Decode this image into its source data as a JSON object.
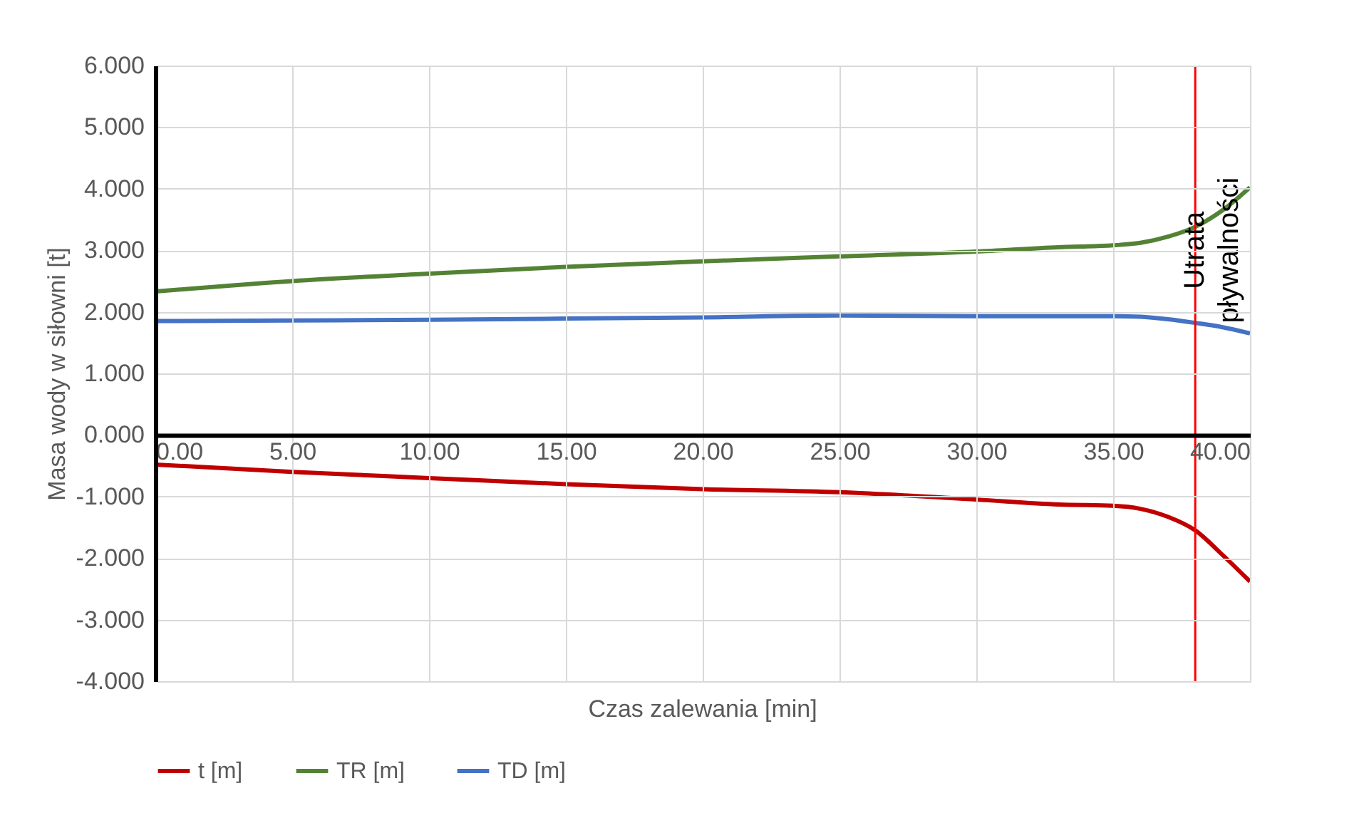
{
  "chart_data": {
    "type": "line",
    "xlabel": "Czas zalewania [min]",
    "ylabel": "Masa wody w siłowni [t]",
    "x": [
      0,
      5,
      10,
      15,
      20,
      25,
      30,
      33,
      35,
      36,
      37,
      38,
      39,
      40
    ],
    "series": [
      {
        "name": "t [m]",
        "color": "#c00000",
        "values": [
          -0.48,
          -0.6,
          -0.7,
          -0.8,
          -0.88,
          -0.93,
          -1.05,
          -1.13,
          -1.15,
          -1.2,
          -1.33,
          -1.55,
          -1.95,
          -2.38
        ]
      },
      {
        "name": "TR [m]",
        "color": "#548235",
        "values": [
          2.33,
          2.5,
          2.62,
          2.73,
          2.82,
          2.9,
          2.98,
          3.05,
          3.08,
          3.12,
          3.22,
          3.38,
          3.65,
          4.02
        ]
      },
      {
        "name": "TD [m]",
        "color": "#4472c4",
        "values": [
          1.85,
          1.86,
          1.87,
          1.89,
          1.91,
          1.94,
          1.93,
          1.93,
          1.93,
          1.92,
          1.88,
          1.82,
          1.75,
          1.65
        ]
      }
    ],
    "xlim": [
      0,
      40
    ],
    "xticks": [
      {
        "value": 0,
        "label": "0.00"
      },
      {
        "value": 5,
        "label": "5.00"
      },
      {
        "value": 10,
        "label": "10.00"
      },
      {
        "value": 15,
        "label": "15.00"
      },
      {
        "value": 20,
        "label": "20.00"
      },
      {
        "value": 25,
        "label": "25.00"
      },
      {
        "value": 30,
        "label": "30.00"
      },
      {
        "value": 35,
        "label": "35.00"
      },
      {
        "value": 40,
        "label": "40.00"
      }
    ],
    "ylim": [
      -4,
      6
    ],
    "yticks": [
      {
        "value": -4,
        "label": "-4.000"
      },
      {
        "value": -3,
        "label": "-3.000"
      },
      {
        "value": -2,
        "label": "-2.000"
      },
      {
        "value": -1,
        "label": "-1.000"
      },
      {
        "value": 0,
        "label": "0.000"
      },
      {
        "value": 1,
        "label": "1.000"
      },
      {
        "value": 2,
        "label": "2.000"
      },
      {
        "value": 3,
        "label": "3.000"
      },
      {
        "value": 4,
        "label": "4.000"
      },
      {
        "value": 5,
        "label": "5.000"
      },
      {
        "value": 6,
        "label": "6.000"
      }
    ],
    "ref_lines": [
      {
        "axis": "x",
        "value": 38,
        "label": "Utrata pływalności",
        "color": "#ff0000"
      }
    ],
    "grid": true,
    "legend": "bottom",
    "marker": "none",
    "line_style": "solid"
  }
}
